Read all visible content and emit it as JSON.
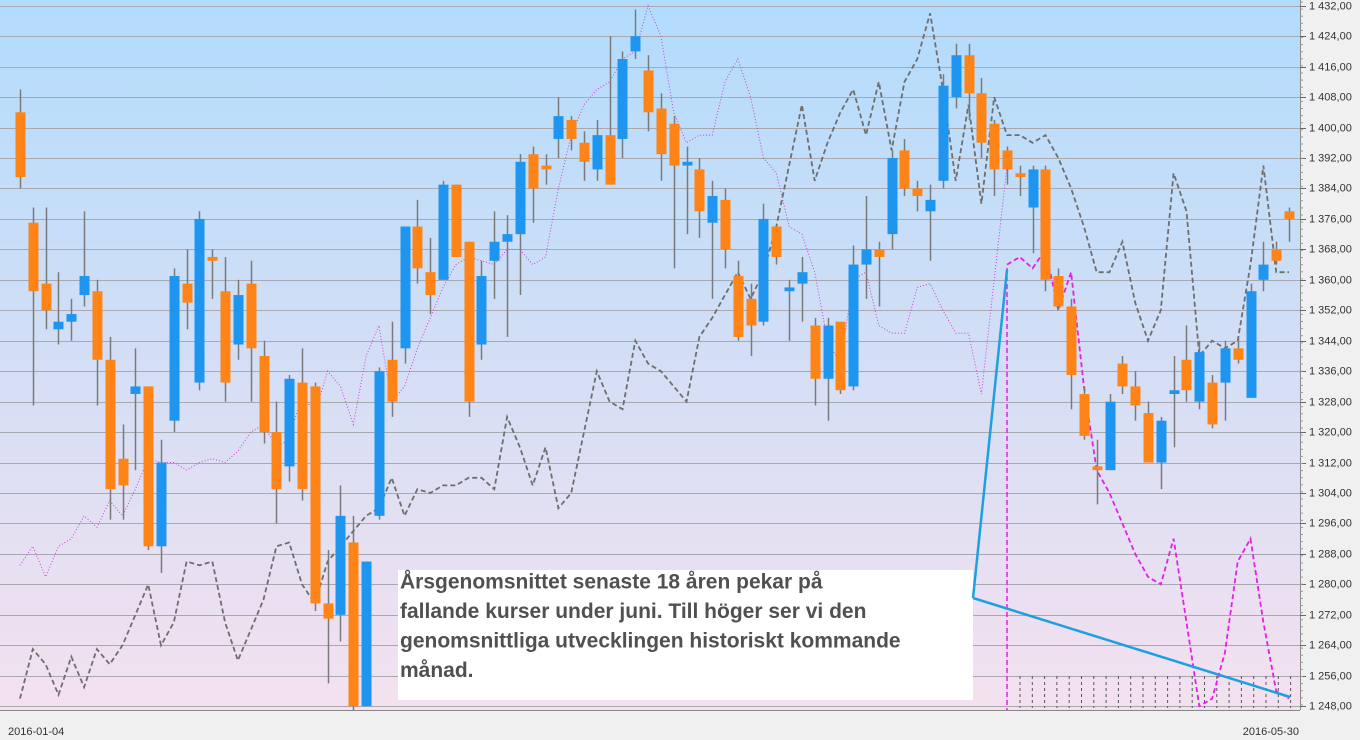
{
  "chart_data": {
    "type": "candlestick",
    "categories": [
      "2016-01-04",
      null,
      null,
      null,
      null,
      null,
      null,
      null,
      null,
      null,
      null,
      null,
      null,
      null,
      null,
      null,
      null,
      null,
      null,
      null,
      null,
      null,
      null,
      null,
      null,
      null,
      null,
      null,
      null,
      null,
      null,
      null,
      null,
      null,
      null,
      null,
      null,
      null,
      null,
      null,
      null,
      null,
      null,
      null,
      null,
      null,
      null,
      null,
      null,
      null,
      null,
      null,
      null,
      null,
      null,
      null,
      null,
      null,
      null,
      null,
      null,
      null,
      null,
      null,
      null,
      null,
      null,
      null,
      null,
      null,
      null,
      null,
      null,
      null,
      null,
      null,
      null,
      null,
      null,
      null,
      null,
      null,
      null,
      null,
      null,
      null,
      null,
      null,
      null,
      null,
      null,
      null,
      null,
      null,
      null,
      null,
      null,
      null,
      null,
      "2016-05-30"
    ],
    "open": [
      1404,
      1375,
      1359,
      1347,
      1349,
      1356,
      1357,
      1339,
      1313,
      1330,
      1332,
      1290,
      1323,
      1359,
      1333,
      1366,
      1357,
      1343,
      1359,
      1340,
      1320,
      1311,
      1333,
      1332,
      1275,
      1272,
      1291,
      1248,
      1298,
      1339,
      1342,
      1374,
      1362,
      1360,
      1385,
      1370,
      1343,
      1365,
      1370,
      1372,
      1393,
      1390,
      1397,
      1402,
      1396,
      1389,
      1398,
      1397,
      1420,
      1415,
      1405,
      1401,
      1390,
      1389,
      1375,
      1381,
      1361,
      1355,
      1349,
      1374,
      1357,
      1359,
      1348,
      1334,
      1349,
      1332,
      1364,
      1368,
      1372,
      1394,
      1384,
      1378,
      1386,
      1408,
      1419,
      1409,
      1401,
      1394,
      1388,
      1379,
      1389,
      1361,
      1353,
      1330,
      1311,
      1310,
      1338,
      1332,
      1325,
      1312,
      1330,
      1339,
      1328,
      1333,
      1333,
      1342,
      1329,
      1360,
      1368,
      1378
    ],
    "high": [
      1410,
      1379,
      1379,
      1362,
      1355,
      1378,
      1360,
      1345,
      1322,
      1342,
      1332,
      1318,
      1363,
      1368,
      1378,
      1368,
      1366,
      1360,
      1365,
      1344,
      1328,
      1335,
      1342,
      1333,
      1289,
      1306,
      1298,
      1286,
      1337,
      1349,
      1374,
      1381,
      1371,
      1386,
      1385,
      1370,
      1365,
      1378,
      1377,
      1393,
      1395,
      1393,
      1408,
      1403,
      1399,
      1402,
      1424,
      1420,
      1431,
      1419,
      1409,
      1403,
      1395,
      1392,
      1386,
      1384,
      1365,
      1359,
      1380,
      1374,
      1360,
      1366,
      1350,
      1350,
      1349,
      1369,
      1382,
      1370,
      1394,
      1397,
      1386,
      1385,
      1414,
      1422,
      1422,
      1413,
      1402,
      1395,
      1390,
      1390,
      1390,
      1363,
      1355,
      1332,
      1318,
      1330,
      1340,
      1336,
      1328,
      1324,
      1340,
      1348,
      1344,
      1335,
      1344,
      1345,
      1359,
      1370,
      1370,
      1379
    ],
    "low": [
      1384,
      1327,
      1347,
      1343,
      1344,
      1353,
      1327,
      1297,
      1297,
      1310,
      1289,
      1283,
      1320,
      1347,
      1331,
      1355,
      1328,
      1339,
      1328,
      1317,
      1296,
      1307,
      1302,
      1273,
      1254,
      1265,
      1247,
      1248,
      1297,
      1324,
      1338,
      1359,
      1351,
      1360,
      1366,
      1324,
      1339,
      1355,
      1345,
      1356,
      1375,
      1385,
      1392,
      1394,
      1386,
      1386,
      1385,
      1392,
      1418,
      1399,
      1386,
      1363,
      1372,
      1371,
      1355,
      1363,
      1344,
      1340,
      1348,
      1364,
      1344,
      1349,
      1327,
      1323,
      1330,
      1331,
      1355,
      1353,
      1368,
      1382,
      1378,
      1365,
      1384,
      1405,
      1402,
      1392,
      1382,
      1385,
      1382,
      1367,
      1357,
      1352,
      1326,
      1318,
      1301,
      1310,
      1330,
      1323,
      1312,
      1305,
      1316,
      1328,
      1326,
      1321,
      1323,
      1338,
      1329,
      1357,
      1364,
      1370
    ],
    "close": [
      1387,
      1357,
      1352,
      1349,
      1351,
      1361,
      1339,
      1305,
      1306,
      1332,
      1290,
      1312,
      1361,
      1354,
      1376,
      1365,
      1333,
      1356,
      1342,
      1320,
      1305,
      1334,
      1305,
      1275,
      1271,
      1298,
      1248,
      1286,
      1336,
      1328,
      1374,
      1363,
      1356,
      1385,
      1366,
      1328,
      1361,
      1370,
      1372,
      1391,
      1384,
      1389,
      1403,
      1397,
      1391,
      1398,
      1385,
      1418,
      1424,
      1404,
      1393,
      1390,
      1391,
      1378,
      1382,
      1368,
      1345,
      1348,
      1376,
      1366,
      1358,
      1362,
      1334,
      1348,
      1331,
      1364,
      1368,
      1366,
      1392,
      1384,
      1382,
      1381,
      1411,
      1419,
      1409,
      1396,
      1389,
      1389,
      1387,
      1389,
      1360,
      1353,
      1335,
      1319,
      1310,
      1328,
      1332,
      1327,
      1312,
      1323,
      1331,
      1331,
      1341,
      1322,
      1342,
      1339,
      1357,
      1364,
      1365,
      1376
    ],
    "up_color": "#1e96f0",
    "down_color": "#ff8418",
    "overlays": [
      {
        "color": "#6e6e6e",
        "style": "dashed",
        "values": [
          1250,
          1263,
          1259,
          1251,
          1261,
          1253,
          1263,
          1259,
          1264,
          1272,
          1280,
          1264,
          1270,
          1286,
          1285,
          1286,
          1270,
          1260,
          1268,
          1276,
          1290,
          1291,
          1280,
          1275,
          1286,
          1290,
          1294,
          1298,
          1300,
          1308,
          1298,
          1305,
          1304,
          1306,
          1306,
          1308,
          1308,
          1305,
          1324,
          1316,
          1306,
          1316,
          1300,
          1304,
          1320,
          1336,
          1328,
          1326,
          1344,
          1338,
          1336,
          1332,
          1328,
          1345,
          1350,
          1356,
          1362,
          1355,
          1362,
          1374,
          1390,
          1406,
          1386,
          1396,
          1404,
          1410,
          1398,
          1412,
          1394,
          1412,
          1418,
          1430,
          1410,
          1386,
          1406,
          1380,
          1408,
          1398,
          1398,
          1396,
          1398,
          1392,
          1384,
          1374,
          1362,
          1362,
          1370,
          1354,
          1344,
          1352,
          1388,
          1378,
          1340,
          1344,
          1342,
          1344,
          1364,
          1390,
          1362,
          1362
        ]
      },
      {
        "color": "#d23cd2",
        "style": "dotted",
        "values": [
          1285,
          1290,
          1282,
          1290,
          1292,
          1298,
          1295,
          1302,
          1298,
          1305,
          1313,
          1312,
          1312,
          1310,
          1312,
          1313,
          1312,
          1315,
          1320,
          1322,
          1316,
          1318,
          1330,
          1325,
          1336,
          1332,
          1322,
          1340,
          1348,
          1328,
          1332,
          1342,
          1350,
          1358,
          1364,
          1366,
          1365,
          1364,
          1368,
          1368,
          1364,
          1366,
          1384,
          1398,
          1406,
          1410,
          1412,
          1418,
          1420,
          1432,
          1424,
          1404,
          1396,
          1398,
          1398,
          1412,
          1418,
          1408,
          1392,
          1388,
          1374,
          1372,
          1362,
          1344,
          1338,
          1360,
          1362,
          1348,
          1346,
          1346,
          1358,
          1359,
          1352,
          1346,
          1346,
          1330,
          1360,
          1390,
          null,
          null,
          null,
          null,
          null,
          null,
          null,
          null,
          null,
          null,
          null,
          null,
          null,
          null,
          null,
          null,
          null,
          null,
          null,
          null,
          null,
          null
        ]
      },
      {
        "color": "#e61ee6",
        "style": "dashed",
        "values": [
          null,
          null,
          null,
          null,
          null,
          null,
          null,
          null,
          null,
          null,
          null,
          null,
          null,
          null,
          null,
          null,
          null,
          null,
          null,
          null,
          null,
          null,
          null,
          null,
          null,
          null,
          null,
          null,
          null,
          null,
          null,
          null,
          null,
          null,
          null,
          null,
          null,
          null,
          null,
          null,
          null,
          null,
          null,
          null,
          null,
          null,
          null,
          null,
          null,
          null,
          null,
          null,
          null,
          null,
          null,
          null,
          null,
          null,
          null,
          null,
          null,
          null,
          null,
          null,
          null,
          null,
          null,
          null,
          null,
          null,
          null,
          null,
          null,
          null,
          null,
          null,
          null,
          1364,
          1366,
          1363,
          1368,
          1352,
          1362,
          1332,
          1310,
          1304,
          1296,
          1288,
          1282,
          1280,
          1292,
          1270,
          1248,
          1250,
          1262,
          1286,
          1292,
          1270,
          1252,
          1250
        ]
      }
    ],
    "ylim": [
      1247,
      1433.5
    ],
    "yticks": [
      {
        "value": 1248,
        "label": "1 248,00"
      },
      {
        "value": 1256,
        "label": "1 256,00"
      },
      {
        "value": 1264,
        "label": "1 264,00"
      },
      {
        "value": 1272,
        "label": "1 272,00"
      },
      {
        "value": 1280,
        "label": "1 280,00"
      },
      {
        "value": 1288,
        "label": "1 288,00"
      },
      {
        "value": 1296,
        "label": "1 296,00"
      },
      {
        "value": 1304,
        "label": "1 304,00"
      },
      {
        "value": 1312,
        "label": "1 312,00"
      },
      {
        "value": 1320,
        "label": "1 320,00"
      },
      {
        "value": 1328,
        "label": "1 328,00"
      },
      {
        "value": 1336,
        "label": "1 336,00"
      },
      {
        "value": 1344,
        "label": "1 344,00"
      },
      {
        "value": 1352,
        "label": "1 352,00"
      },
      {
        "value": 1360,
        "label": "1 360,00"
      },
      {
        "value": 1368,
        "label": "1 368,00"
      },
      {
        "value": 1376,
        "label": "1 376,00"
      },
      {
        "value": 1384,
        "label": "1 384,00"
      },
      {
        "value": 1392,
        "label": "1 392,00"
      },
      {
        "value": 1400,
        "label": "1 400,00"
      },
      {
        "value": 1408,
        "label": "1 408,00"
      },
      {
        "value": 1416,
        "label": "1 416,00"
      },
      {
        "value": 1424,
        "label": "1 424,00"
      },
      {
        "value": 1432,
        "label": "1 432,00"
      }
    ],
    "grid": true,
    "annotation": [
      "Årsgenomsnittet senaste 18 åren pekar på",
      "fallande kurser under juni. Till höger ser vi den",
      "genomsnittliga utvecklingen historiskt kommande",
      "månad."
    ]
  }
}
